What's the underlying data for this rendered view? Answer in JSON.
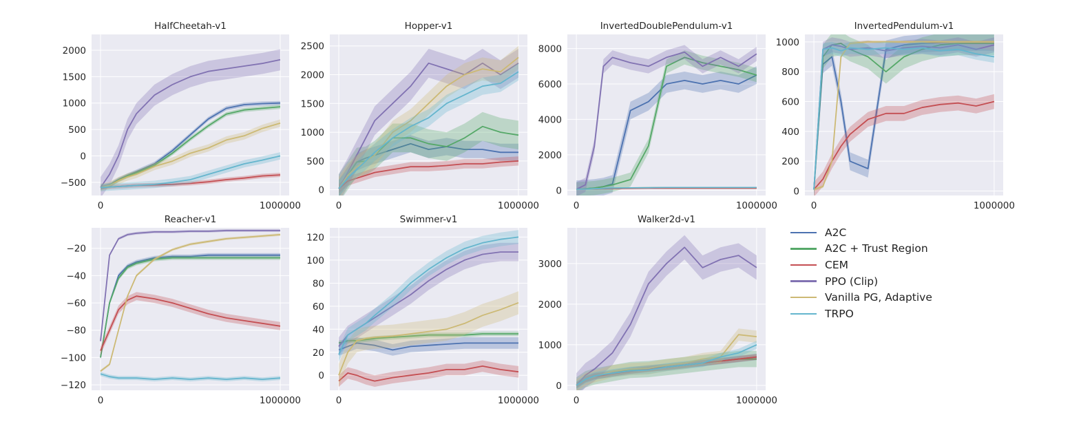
{
  "chart_data": [
    {
      "type": "line",
      "title": "HalfCheetah-v1",
      "x": [
        0,
        50000,
        100000,
        150000,
        200000,
        300000,
        400000,
        500000,
        600000,
        700000,
        800000,
        900000,
        1000000
      ],
      "xlim": [
        -50000,
        1050000
      ],
      "xticks": [
        0,
        1000000
      ],
      "xticklabels": [
        "0",
        "1000000"
      ],
      "ylim": [
        -750,
        2300
      ],
      "yticks": [
        -500,
        0,
        500,
        1000,
        1500,
        2000
      ],
      "series": [
        {
          "name": "A2C",
          "values": [
            -600,
            -550,
            -450,
            -370,
            -300,
            -150,
            100,
            400,
            700,
            900,
            970,
            990,
            1000
          ],
          "band": 40
        },
        {
          "name": "A2C + Trust Region",
          "values": [
            -600,
            -560,
            -460,
            -380,
            -320,
            -180,
            50,
            320,
            570,
            790,
            870,
            900,
            930
          ],
          "band": 40
        },
        {
          "name": "CEM",
          "values": [
            -600,
            -590,
            -580,
            -570,
            -560,
            -550,
            -540,
            -520,
            -490,
            -450,
            -420,
            -380,
            -360
          ],
          "band": 40
        },
        {
          "name": "PPO (Clip)",
          "values": [
            -600,
            -350,
            0,
            500,
            800,
            1150,
            1350,
            1500,
            1600,
            1650,
            1700,
            1750,
            1820
          ],
          "band": 200
        },
        {
          "name": "Vanilla PG, Adaptive",
          "values": [
            -600,
            -560,
            -470,
            -400,
            -350,
            -200,
            -100,
            50,
            150,
            300,
            380,
            520,
            620
          ],
          "band": 70
        },
        {
          "name": "TRPO",
          "values": [
            -600,
            -590,
            -580,
            -570,
            -560,
            -540,
            -500,
            -450,
            -350,
            -250,
            -150,
            -80,
            0
          ],
          "band": 70
        }
      ]
    },
    {
      "type": "line",
      "title": "Hopper-v1",
      "x": [
        0,
        50000,
        100000,
        150000,
        200000,
        300000,
        400000,
        500000,
        600000,
        700000,
        800000,
        900000,
        1000000
      ],
      "xlim": [
        -50000,
        1050000
      ],
      "xticks": [
        0,
        1000000
      ],
      "xticklabels": [
        "0",
        "1000000"
      ],
      "ylim": [
        -100,
        2700
      ],
      "yticks": [
        0,
        500,
        1000,
        1500,
        2000,
        2500
      ],
      "series": [
        {
          "name": "A2C",
          "values": [
            20,
            250,
            480,
            550,
            600,
            700,
            800,
            700,
            750,
            700,
            700,
            650,
            650
          ],
          "band": 150
        },
        {
          "name": "A2C + Trust Region",
          "values": [
            20,
            250,
            480,
            500,
            600,
            900,
            900,
            800,
            750,
            900,
            1100,
            1000,
            950
          ],
          "band": 250
        },
        {
          "name": "CEM",
          "values": [
            20,
            150,
            200,
            250,
            300,
            350,
            400,
            400,
            420,
            450,
            450,
            480,
            500
          ],
          "band": 80
        },
        {
          "name": "PPO (Clip)",
          "values": [
            20,
            300,
            600,
            900,
            1200,
            1500,
            1800,
            2200,
            2100,
            2000,
            2200,
            2000,
            2200
          ],
          "band": 250
        },
        {
          "name": "Vanilla PG, Adaptive",
          "values": [
            20,
            250,
            400,
            500,
            600,
            1000,
            1200,
            1500,
            1800,
            2000,
            2100,
            2050,
            2300
          ],
          "band": 200
        },
        {
          "name": "TRPO",
          "values": [
            20,
            200,
            350,
            500,
            650,
            900,
            1100,
            1250,
            1500,
            1650,
            1800,
            1850,
            2050
          ],
          "band": 150
        }
      ]
    },
    {
      "type": "line",
      "title": "InvertedDoublePendulum-v1",
      "x": [
        0,
        50000,
        100000,
        150000,
        200000,
        300000,
        400000,
        500000,
        600000,
        700000,
        800000,
        900000,
        1000000
      ],
      "xlim": [
        -50000,
        1050000
      ],
      "xticks": [
        0,
        1000000
      ],
      "xticklabels": [
        "0",
        "1000000"
      ],
      "ylim": [
        -300,
        8800
      ],
      "yticks": [
        0,
        2000,
        4000,
        6000,
        8000
      ],
      "series": [
        {
          "name": "A2C",
          "values": [
            50,
            80,
            120,
            200,
            350,
            4500,
            5000,
            6000,
            6200,
            6000,
            6200,
            6000,
            6500
          ],
          "band": 500
        },
        {
          "name": "A2C + Trust Region",
          "values": [
            50,
            80,
            120,
            200,
            300,
            600,
            2500,
            7000,
            7500,
            7200,
            7000,
            6800,
            6500
          ],
          "band": 400
        },
        {
          "name": "CEM",
          "values": [
            50,
            60,
            70,
            80,
            90,
            100,
            110,
            110,
            110,
            110,
            110,
            110,
            110
          ],
          "band": 20
        },
        {
          "name": "PPO (Clip)",
          "values": [
            50,
            300,
            2500,
            7000,
            7500,
            7200,
            7000,
            7500,
            7800,
            7000,
            7500,
            7000,
            7700
          ],
          "band": 400
        },
        {
          "name": "Vanilla PG, Adaptive",
          "values": [
            50,
            60,
            80,
            100,
            120,
            130,
            140,
            150,
            150,
            150,
            150,
            150,
            150
          ],
          "band": 20
        },
        {
          "name": "TRPO",
          "values": [
            50,
            60,
            80,
            100,
            120,
            130,
            140,
            150,
            150,
            150,
            150,
            150,
            150
          ],
          "band": 20
        }
      ]
    },
    {
      "type": "line",
      "title": "InvertedPendulum-v1",
      "x": [
        0,
        50000,
        100000,
        150000,
        200000,
        300000,
        400000,
        500000,
        600000,
        700000,
        800000,
        900000,
        1000000
      ],
      "xlim": [
        -50000,
        1050000
      ],
      "xticks": [
        0,
        1000000
      ],
      "xticklabels": [
        "0",
        "1000000"
      ],
      "ylim": [
        -30,
        1050
      ],
      "yticks": [
        0,
        200,
        400,
        600,
        800,
        1000
      ],
      "series": [
        {
          "name": "A2C",
          "values": [
            10,
            850,
            900,
            600,
            200,
            150,
            950,
            980,
            990,
            995,
            1000,
            1000,
            1000
          ],
          "band": 60
        },
        {
          "name": "A2C + Trust Region",
          "values": [
            10,
            900,
            980,
            990,
            950,
            900,
            800,
            900,
            950,
            980,
            990,
            990,
            990
          ],
          "band": 80
        },
        {
          "name": "CEM",
          "values": [
            10,
            80,
            200,
            300,
            380,
            480,
            520,
            520,
            560,
            580,
            590,
            570,
            600
          ],
          "band": 50
        },
        {
          "name": "PPO (Clip)",
          "values": [
            10,
            950,
            980,
            970,
            950,
            960,
            940,
            960,
            970,
            960,
            980,
            950,
            980
          ],
          "band": 50
        },
        {
          "name": "Vanilla PG, Adaptive",
          "values": [
            10,
            30,
            200,
            900,
            990,
            1000,
            1000,
            1000,
            1000,
            1000,
            1000,
            1000,
            1000
          ],
          "band": 10
        },
        {
          "name": "TRPO",
          "values": [
            10,
            950,
            960,
            940,
            960,
            950,
            960,
            950,
            960,
            940,
            950,
            920,
            900
          ],
          "band": 40
        }
      ]
    },
    {
      "type": "line",
      "title": "Reacher-v1",
      "x": [
        0,
        50000,
        100000,
        150000,
        200000,
        300000,
        400000,
        500000,
        600000,
        700000,
        800000,
        900000,
        1000000
      ],
      "xlim": [
        -50000,
        1050000
      ],
      "xticks": [
        0,
        1000000
      ],
      "xticklabels": [
        "0",
        "1000000"
      ],
      "ylim": [
        -124,
        -5
      ],
      "yticks": [
        -120,
        -100,
        -80,
        -60,
        -40,
        -20
      ],
      "series": [
        {
          "name": "A2C",
          "values": [
            -100,
            -60,
            -40,
            -33,
            -30,
            -27,
            -26,
            -26,
            -25,
            -25,
            -25,
            -25,
            -25
          ],
          "band": 1.5
        },
        {
          "name": "A2C + Trust Region",
          "values": [
            -100,
            -60,
            -42,
            -34,
            -31,
            -28,
            -27,
            -27,
            -27,
            -27,
            -27,
            -27,
            -27
          ],
          "band": 1.5
        },
        {
          "name": "CEM",
          "values": [
            -95,
            -80,
            -65,
            -58,
            -55,
            -57,
            -60,
            -64,
            -68,
            -71,
            -73,
            -75,
            -77
          ],
          "band": 3
        },
        {
          "name": "PPO (Clip)",
          "values": [
            -88,
            -25,
            -13,
            -10,
            -9,
            -8,
            -8,
            -7.5,
            -7.5,
            -7,
            -7,
            -7,
            -7
          ],
          "band": 1
        },
        {
          "name": "Vanilla PG, Adaptive",
          "values": [
            -110,
            -105,
            -80,
            -55,
            -40,
            -28,
            -21,
            -17,
            -15,
            -13,
            -12,
            -11,
            -10
          ],
          "band": 1
        },
        {
          "name": "TRPO",
          "values": [
            -112,
            -114,
            -115,
            -115,
            -115,
            -116,
            -115,
            -116,
            -115,
            -116,
            -115,
            -116,
            -115
          ],
          "band": 1.5
        }
      ]
    },
    {
      "type": "line",
      "title": "Swimmer-v1",
      "x": [
        0,
        50000,
        100000,
        150000,
        200000,
        300000,
        400000,
        500000,
        600000,
        700000,
        800000,
        900000,
        1000000
      ],
      "xlim": [
        -50000,
        1050000
      ],
      "xticks": [
        0,
        1000000
      ],
      "xticklabels": [
        "0",
        "1000000"
      ],
      "ylim": [
        -13,
        128
      ],
      "yticks": [
        0,
        20,
        40,
        60,
        80,
        100,
        120
      ],
      "series": [
        {
          "name": "A2C",
          "values": [
            22,
            25,
            28,
            27,
            26,
            22,
            25,
            26,
            27,
            28,
            28,
            28,
            28
          ],
          "band": 5
        },
        {
          "name": "A2C + Trust Region",
          "values": [
            28,
            30,
            30,
            31,
            32,
            33,
            34,
            35,
            35,
            35,
            36,
            36,
            36
          ],
          "band": 2
        },
        {
          "name": "CEM",
          "values": [
            -5,
            2,
            0,
            -3,
            -5,
            -2,
            0,
            2,
            5,
            5,
            8,
            5,
            3
          ],
          "band": 5
        },
        {
          "name": "PPO (Clip)",
          "values": [
            25,
            35,
            40,
            45,
            50,
            60,
            70,
            82,
            92,
            100,
            105,
            107,
            107
          ],
          "band": 8
        },
        {
          "name": "Vanilla PG, Adaptive",
          "values": [
            0,
            20,
            30,
            32,
            33,
            34,
            36,
            38,
            40,
            45,
            52,
            57,
            63
          ],
          "band": 10
        },
        {
          "name": "TRPO",
          "values": [
            18,
            35,
            40,
            45,
            52,
            65,
            80,
            92,
            102,
            110,
            115,
            118,
            120
          ],
          "band": 6
        }
      ]
    },
    {
      "type": "line",
      "title": "Walker2d-v1",
      "x": [
        0,
        50000,
        100000,
        150000,
        200000,
        300000,
        400000,
        500000,
        600000,
        700000,
        800000,
        900000,
        1000000
      ],
      "xlim": [
        -50000,
        1050000
      ],
      "xticks": [
        0,
        1000000
      ],
      "xticklabels": [
        "0",
        "1000000"
      ],
      "ylim": [
        -120,
        3880
      ],
      "yticks": [
        0,
        1000,
        2000,
        3000
      ],
      "series": [
        {
          "name": "A2C",
          "values": [
            0,
            150,
            230,
            260,
            300,
            370,
            420,
            450,
            500,
            550,
            600,
            650,
            700
          ],
          "band": 80
        },
        {
          "name": "A2C + Trust Region",
          "values": [
            0,
            150,
            220,
            260,
            300,
            380,
            400,
            450,
            500,
            550,
            600,
            650,
            650
          ],
          "band": 200
        },
        {
          "name": "CEM",
          "values": [
            0,
            150,
            220,
            250,
            290,
            350,
            400,
            450,
            500,
            550,
            600,
            650,
            700
          ],
          "band": 70
        },
        {
          "name": "PPO (Clip)",
          "values": [
            0,
            250,
            400,
            600,
            800,
            1500,
            2500,
            3000,
            3400,
            2900,
            3100,
            3200,
            2900
          ],
          "band": 300
        },
        {
          "name": "Vanilla PG, Adaptive",
          "values": [
            0,
            150,
            220,
            280,
            350,
            400,
            420,
            500,
            550,
            650,
            700,
            1250,
            1200
          ],
          "band": 150
        },
        {
          "name": "TRPO",
          "values": [
            0,
            150,
            230,
            270,
            300,
            360,
            380,
            450,
            500,
            550,
            700,
            800,
            1000
          ],
          "band": 100
        }
      ]
    }
  ],
  "legend": {
    "items": [
      {
        "label": "A2C",
        "color": "#4c72b0"
      },
      {
        "label": "A2C + Trust Region",
        "color": "#55a868"
      },
      {
        "label": "CEM",
        "color": "#c44e52"
      },
      {
        "label": "PPO (Clip)",
        "color": "#8172b2"
      },
      {
        "label": "Vanilla PG, Adaptive",
        "color": "#ccb974"
      },
      {
        "label": "TRPO",
        "color": "#64b5cd"
      }
    ]
  },
  "colors": {
    "axes_bg": "#eaeaf2",
    "grid": "#ffffff",
    "text": "#262626"
  }
}
